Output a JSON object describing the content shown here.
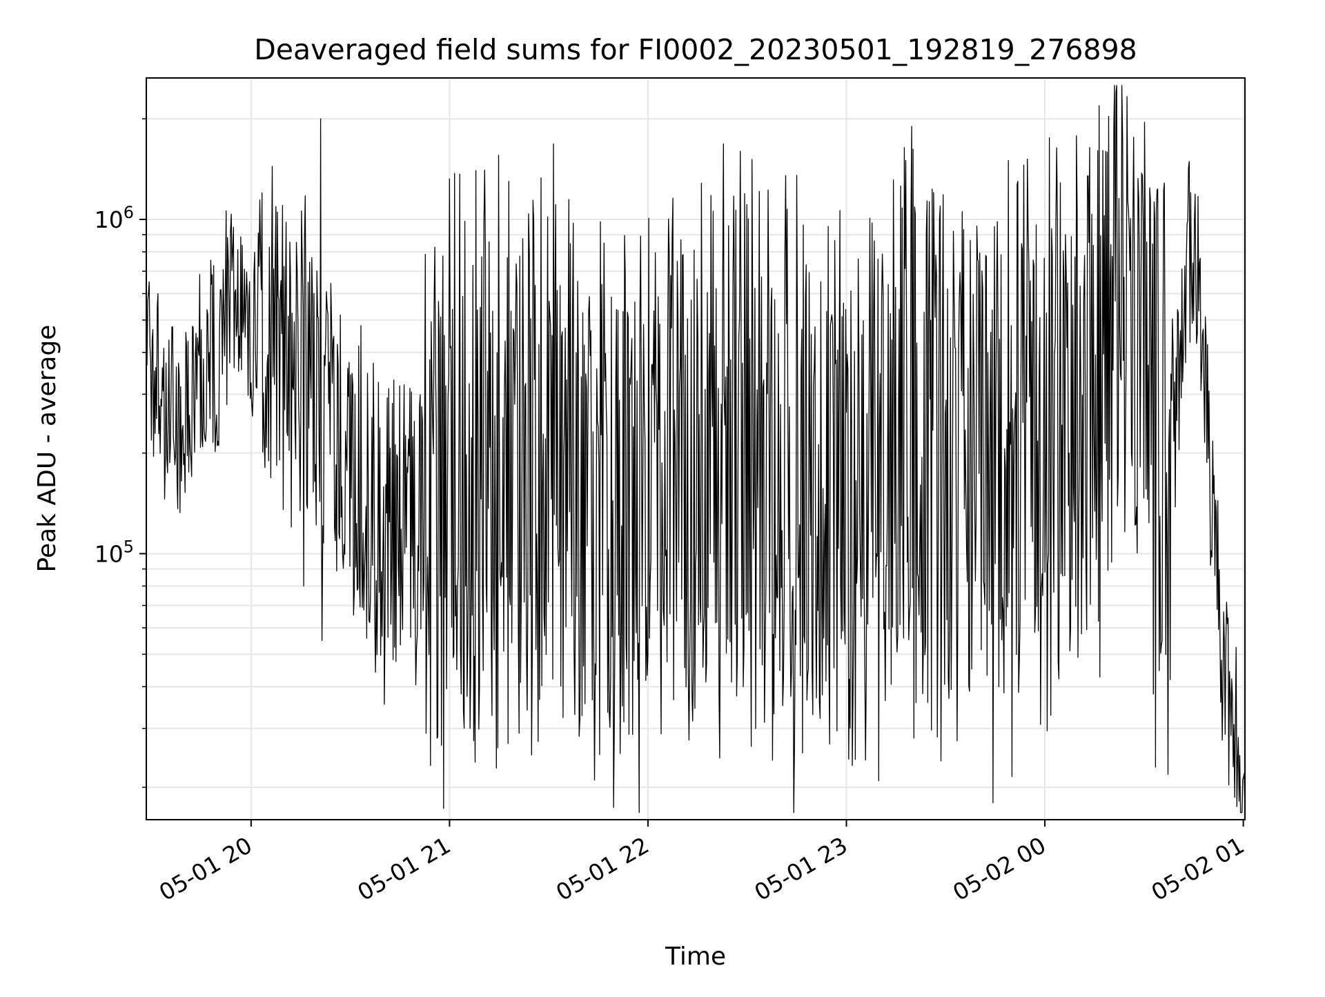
{
  "chart_data": {
    "type": "line",
    "title": "Deaveraged field sums for FI0002_20230501_192819_276898",
    "xlabel": "Time",
    "ylabel": "Peak ADU - average",
    "y_scale": "log",
    "grid": true,
    "line_color": "#000000",
    "grid_color": "#e6e6e6",
    "x_ticks": [
      "05-01 20",
      "05-01 21",
      "05-01 22",
      "05-01 23",
      "05-02 00",
      "05-02 01"
    ],
    "x_tick_times": [
      "2023-05-01T20:00",
      "2023-05-01T21:00",
      "2023-05-01T22:00",
      "2023-05-01T23:00",
      "2023-05-02T00:00",
      "2023-05-02T01:00"
    ],
    "y_ticks": [
      {
        "value": 100000,
        "base": "10",
        "exp": "5"
      },
      {
        "value": 1000000,
        "base": "10",
        "exp": "6"
      }
    ],
    "xlim": [
      "2023-05-01T19:28:19",
      "2023-05-02T01:00:30"
    ],
    "ylim": [
      16000,
      2650000
    ],
    "series": [
      {
        "points": [
          [
            "2023-05-01T19:28:19",
            620000
          ],
          [
            "2023-05-01T19:30:00",
            300000
          ],
          [
            "2023-05-01T19:32:00",
            500000
          ],
          [
            "2023-05-01T19:34:00",
            190000
          ],
          [
            "2023-05-01T19:36:00",
            400000
          ],
          [
            "2023-05-01T19:38:00",
            220000
          ],
          [
            "2023-05-01T19:40:00",
            300000
          ],
          [
            "2023-05-01T19:42:00",
            270000
          ],
          [
            "2023-05-01T19:44:00",
            360000
          ],
          [
            "2023-05-01T19:46:00",
            300000
          ],
          [
            "2023-05-01T19:48:00",
            420000
          ],
          [
            "2023-05-01T19:50:00",
            380000
          ],
          [
            "2023-05-01T19:52:00",
            500000
          ],
          [
            "2023-05-01T19:54:00",
            700000
          ],
          [
            "2023-05-01T19:56:00",
            560000
          ],
          [
            "2023-05-01T19:58:00",
            620000
          ],
          [
            "2023-05-01T20:00:00",
            500000
          ],
          [
            "2023-05-01T20:05:00",
            450000
          ],
          [
            "2023-05-01T20:10:00",
            400000
          ],
          [
            "2023-05-01T20:15:00",
            380000
          ],
          [
            "2023-05-01T20:20:00",
            330000
          ],
          [
            "2023-05-01T20:25:00",
            230000
          ],
          [
            "2023-05-01T20:30:00",
            180000
          ],
          [
            "2023-05-01T20:35:00",
            140000
          ],
          [
            "2023-05-01T20:40:00",
            90000
          ],
          [
            "2023-05-01T20:45:00",
            130000
          ],
          [
            "2023-05-01T20:50:00",
            120000
          ],
          [
            "2023-05-01T20:55:00",
            160000
          ],
          [
            "2023-05-01T21:00:00",
            150000
          ],
          [
            "2023-05-01T21:10:00",
            200000
          ],
          [
            "2023-05-01T21:20:00",
            160000
          ],
          [
            "2023-05-01T21:30:00",
            170000
          ],
          [
            "2023-05-01T21:40:00",
            150000
          ],
          [
            "2023-05-01T21:50:00",
            160000
          ],
          [
            "2023-05-01T22:00:00",
            150000
          ],
          [
            "2023-05-01T22:10:00",
            180000
          ],
          [
            "2023-05-01T22:20:00",
            170000
          ],
          [
            "2023-05-01T22:30:00",
            190000
          ],
          [
            "2023-05-01T22:40:00",
            160000
          ],
          [
            "2023-05-01T22:50:00",
            130000
          ],
          [
            "2023-05-01T23:00:00",
            170000
          ],
          [
            "2023-05-01T23:10:00",
            190000
          ],
          [
            "2023-05-01T23:20:00",
            180000
          ],
          [
            "2023-05-01T23:30:00",
            200000
          ],
          [
            "2023-05-01T23:40:00",
            190000
          ],
          [
            "2023-05-01T23:50:00",
            180000
          ],
          [
            "2023-05-02T00:00:00",
            190000
          ],
          [
            "2023-05-02T00:10:00",
            400000
          ],
          [
            "2023-05-02T00:15:00",
            300000
          ],
          [
            "2023-05-02T00:20:00",
            480000
          ],
          [
            "2023-05-02T00:25:00",
            520000
          ],
          [
            "2023-05-02T00:30:00",
            320000
          ],
          [
            "2023-05-02T00:35:00",
            220000
          ],
          [
            "2023-05-02T00:40:00",
            260000
          ],
          [
            "2023-05-02T00:42:00",
            550000
          ],
          [
            "2023-05-02T00:44:00",
            800000
          ],
          [
            "2023-05-02T00:46:00",
            700000
          ],
          [
            "2023-05-02T00:48:00",
            400000
          ],
          [
            "2023-05-02T00:50:00",
            160000
          ],
          [
            "2023-05-02T00:52:00",
            110000
          ],
          [
            "2023-05-02T00:54:00",
            45000
          ],
          [
            "2023-05-02T00:56:00",
            30000
          ],
          [
            "2023-05-02T00:58:00",
            25000
          ],
          [
            "2023-05-02T01:00:00",
            19000
          ]
        ],
        "note_spikes": [
          [
            "2023-05-01T20:21:00",
            2000000
          ],
          [
            "2023-05-01T20:21:30",
            55000
          ],
          [
            "2023-05-01T20:16:00",
            80000
          ],
          [
            "2023-05-01T20:53:00",
            29000
          ],
          [
            "2023-05-01T21:08:00",
            1400000
          ],
          [
            "2023-05-01T22:28:00",
            1600000
          ],
          [
            "2023-05-01T22:41:00",
            42000
          ],
          [
            "2023-05-01T23:02:00",
            40000
          ],
          [
            "2023-05-01T23:18:00",
            1500000
          ],
          [
            "2023-05-01T23:49:00",
            1500000
          ],
          [
            "2023-05-02T00:13:00",
            1350000
          ],
          [
            "2023-05-02T00:38:00",
            42000
          ]
        ]
      }
    ]
  }
}
